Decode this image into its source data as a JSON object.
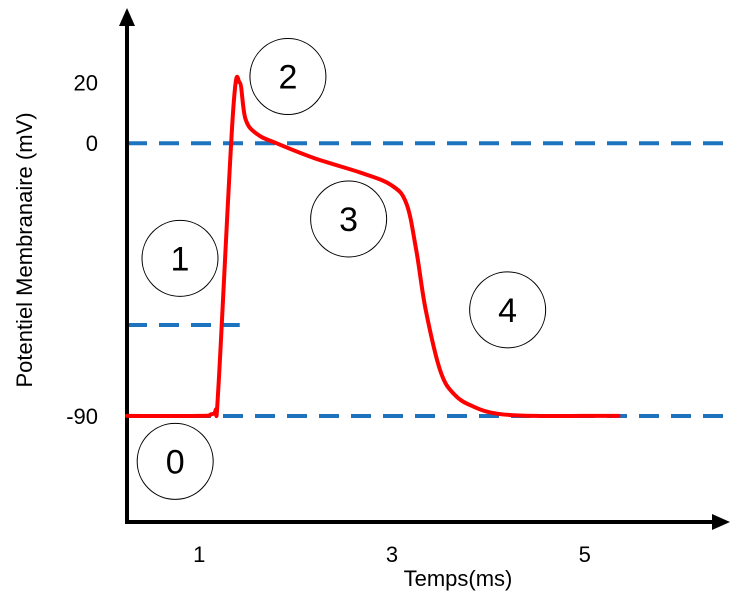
{
  "chart_data": {
    "type": "line",
    "title": "",
    "xlabel": "Temps(ms)",
    "ylabel": "Potentiel Membranaire (mV)",
    "xlim": [
      0.25,
      6.3
    ],
    "ylim": [
      -125,
      40
    ],
    "x_ticks": [
      "1",
      "3",
      "5"
    ],
    "y_ticks": [
      "20",
      "0",
      "-90"
    ],
    "grid": false,
    "legend": "none",
    "series": [
      {
        "color": "#ff0000",
        "x": [
          0.25,
          1.0,
          1.12,
          1.17,
          1.2,
          1.35,
          1.42,
          1.48,
          1.6,
          1.8,
          2.2,
          2.7,
          3.0,
          3.15,
          3.25,
          3.35,
          3.5,
          3.65,
          3.85,
          4.1,
          4.5,
          5.0,
          5.35
        ],
        "values": [
          -90,
          -90,
          -89.5,
          -88,
          -80,
          10,
          20,
          8,
          3,
          0,
          -5,
          -10,
          -14,
          -20,
          -35,
          -55,
          -75,
          -83,
          -87,
          -89.3,
          -90,
          -90,
          -90
        ]
      }
    ],
    "reference_lines": [
      {
        "value": 0,
        "color": "#1e73be",
        "style": "dashed"
      },
      {
        "value": -90,
        "color": "#1e73be",
        "style": "dashed"
      },
      {
        "value": -60,
        "color": "#1e73be",
        "style": "dashed",
        "segment": "partial"
      }
    ],
    "phase_labels": [
      {
        "text": "0",
        "x": 0.75,
        "y": -105
      },
      {
        "text": "1",
        "x": 0.8,
        "y": -38
      },
      {
        "text": "2",
        "x": 1.92,
        "y": 22
      },
      {
        "text": "3",
        "x": 2.55,
        "y": -25
      },
      {
        "text": "4",
        "x": 4.2,
        "y": -55
      }
    ]
  }
}
